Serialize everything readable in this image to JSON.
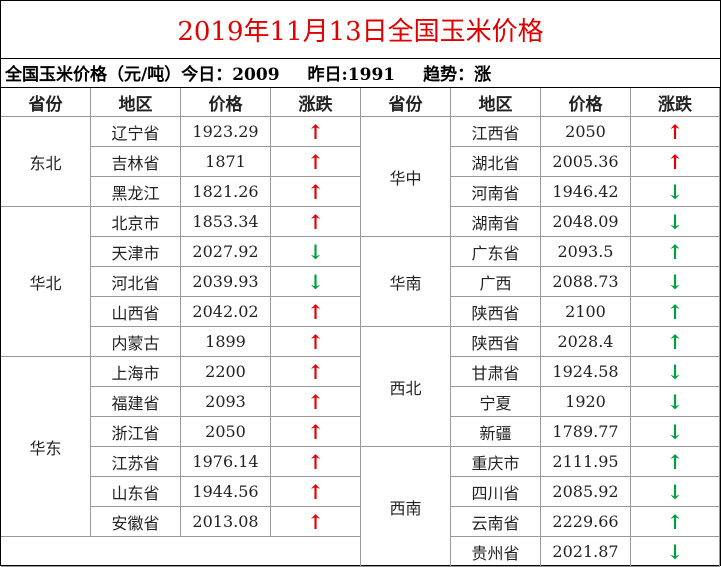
{
  "title": "2019年11月13日全国玉米价格",
  "subtitle": [
    "全国玉米价格（元/吨）今日：2009",
    "昨日:1991",
    "趋势：涨"
  ],
  "headers": [
    "省份",
    "地区",
    "价格",
    "涨跌"
  ],
  "left": [
    {
      "province": "东北",
      "rows": [
        [
          "辽宁省",
          1923.29,
          "↑",
          "#e60000"
        ],
        [
          "吉林省",
          1871,
          "↑",
          "#e60000"
        ],
        [
          "黑龙江",
          1821.26,
          "↑",
          "#e60000"
        ]
      ]
    },
    {
      "province": "华北",
      "rows": [
        [
          "北京市",
          1853.34,
          "↑",
          "#e60000"
        ],
        [
          "天津市",
          2027.92,
          "↓",
          "#00a040"
        ],
        [
          "河北省",
          2039.93,
          "↓",
          "#00a040"
        ],
        [
          "山西省",
          2042.02,
          "↑",
          "#e60000"
        ],
        [
          "内蒙古",
          1899,
          "↑",
          "#e60000"
        ]
      ]
    },
    {
      "province": "华东",
      "rows": [
        [
          "上海市",
          2200,
          "↑",
          "#e60000"
        ],
        [
          "福建省",
          2093,
          "↑",
          "#e60000"
        ],
        [
          "浙江省",
          2050,
          "↑",
          "#e60000"
        ],
        [
          "江苏省",
          1976.14,
          "↑",
          "#e60000"
        ],
        [
          "山东省",
          1944.56,
          "↑",
          "#e60000"
        ],
        [
          "安徽省",
          2013.08,
          "↑",
          "#e60000"
        ]
      ]
    }
  ],
  "right": [
    {
      "province": "华中",
      "rows": [
        [
          "江西省",
          2050,
          "↑",
          "#e60000"
        ],
        [
          "湖北省",
          2005.36,
          "↑",
          "#e60000"
        ],
        [
          "河南省",
          1946.42,
          "↓",
          "#00a040"
        ],
        [
          "湖南省",
          2048.09,
          "↓",
          "#00a040"
        ]
      ]
    },
    {
      "province": "华南",
      "rows": [
        [
          "广东省",
          2093.5,
          "↑",
          "#00a040"
        ],
        [
          "广西",
          2088.73,
          "↓",
          "#00a040"
        ],
        [
          "陕西省",
          2100,
          "↑",
          "#00a040"
        ]
      ]
    },
    {
      "province": "西北",
      "rows": [
        [
          "陕西省",
          2028.4,
          "↑",
          "#00a040"
        ],
        [
          "甘肃省",
          1924.58,
          "↓",
          "#00a040"
        ],
        [
          "宁夏",
          1920,
          "↓",
          "#00a040"
        ],
        [
          "新疆",
          1789.77,
          "↓",
          "#00a040"
        ]
      ]
    },
    {
      "province": "西南",
      "rows": [
        [
          "重庆市",
          2111.95,
          "↑",
          "#00a040"
        ],
        [
          "四川省",
          2085.92,
          "↓",
          "#00a040"
        ],
        [
          "云南省",
          2229.66,
          "↑",
          "#00a040"
        ],
        [
          "贵州省",
          2021.87,
          "↓",
          "#00a040"
        ]
      ]
    }
  ]
}
